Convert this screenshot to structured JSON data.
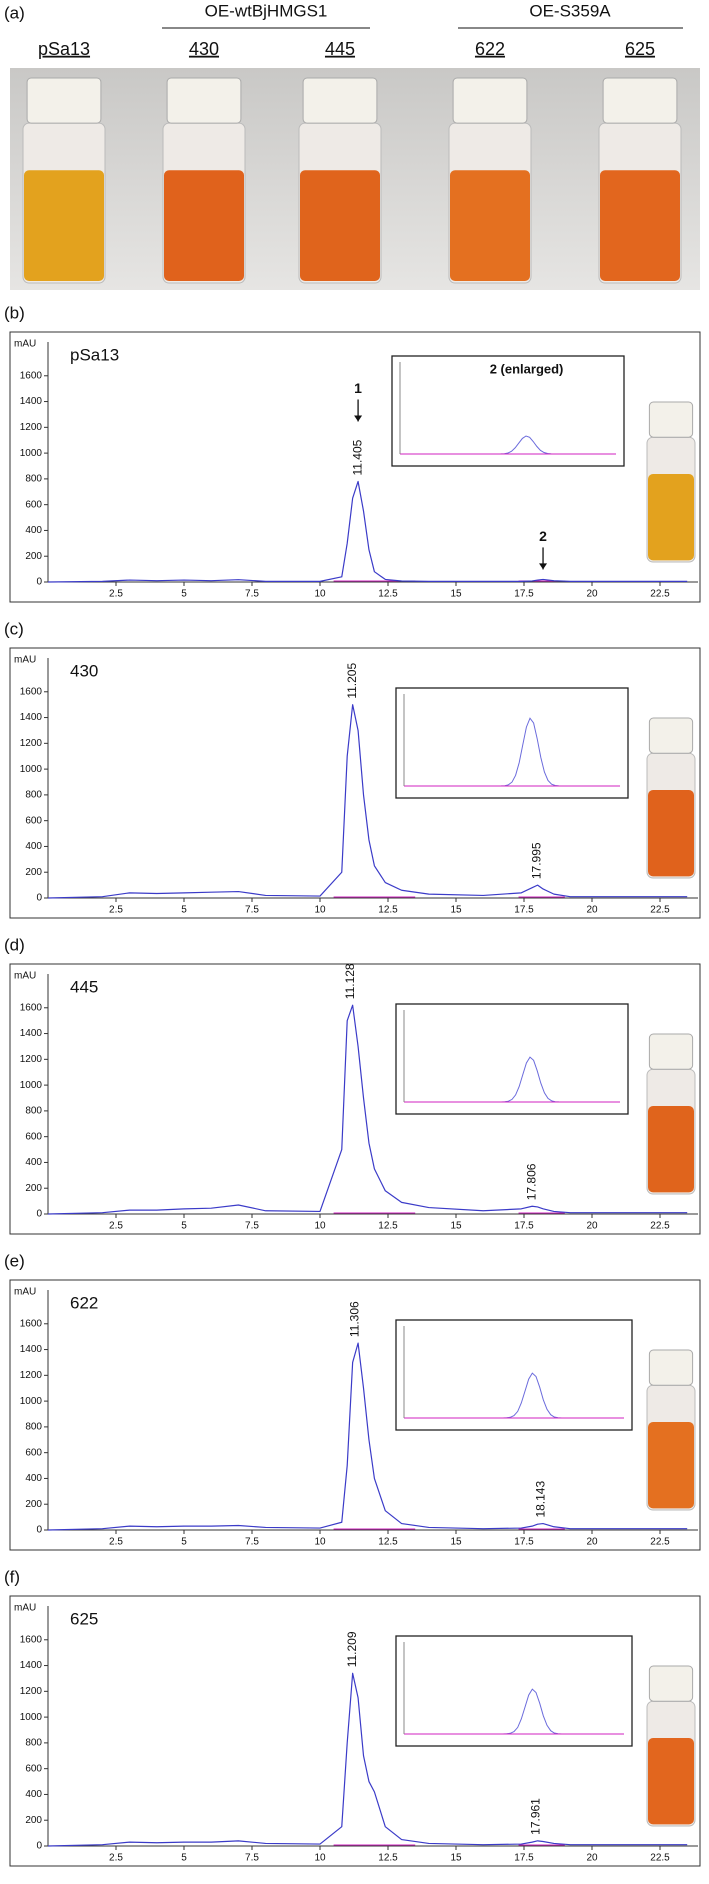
{
  "panel_a": {
    "label": "(a)",
    "groups": [
      "OE-wtBjHMGS1",
      "OE-S359A"
    ],
    "samples": [
      "pSa13",
      "430",
      "445",
      "622",
      "625"
    ]
  },
  "chart_data": [
    {
      "type": "line",
      "panel": "(b)",
      "title": "pSa13",
      "y_label": "mAU",
      "xlim": [
        0,
        23.5
      ],
      "ylim": [
        0,
        1800
      ],
      "xticks": [
        2.5,
        5,
        7.5,
        10,
        12.5,
        15,
        17.5,
        20,
        22.5
      ],
      "yticks": [
        0,
        200,
        400,
        600,
        800,
        1000,
        1200,
        1400,
        1600
      ],
      "x": [
        0,
        2,
        3,
        4,
        5,
        6,
        7,
        8,
        10,
        10.8,
        11.0,
        11.2,
        11.4,
        11.6,
        11.8,
        12.0,
        12.4,
        13,
        14,
        16,
        17.4,
        17.8,
        18.0,
        18.2,
        18.6,
        19.2,
        21,
        23.5
      ],
      "series": [
        {
          "color": "#3b3bc8",
          "values": [
            0,
            5,
            15,
            10,
            15,
            10,
            18,
            5,
            5,
            40,
            300,
            650,
            780,
            550,
            250,
            80,
            20,
            8,
            5,
            5,
            5,
            8,
            15,
            20,
            10,
            5,
            5,
            5
          ]
        }
      ],
      "peak_labels": [
        11.405
      ],
      "annotations": [
        "1",
        "2"
      ],
      "inset_label": "2 (enlarged)",
      "vial_color": "#e3a21e"
    },
    {
      "type": "line",
      "panel": "(c)",
      "title": "430",
      "y_label": "mAU",
      "xlim": [
        0,
        23.5
      ],
      "ylim": [
        0,
        1800
      ],
      "xticks": [
        2.5,
        5,
        7.5,
        10,
        12.5,
        15,
        17.5,
        20,
        22.5
      ],
      "yticks": [
        0,
        200,
        400,
        600,
        800,
        1000,
        1200,
        1400,
        1600
      ],
      "x": [
        0,
        2,
        3,
        4,
        5,
        6,
        7,
        8,
        10,
        10.8,
        11.0,
        11.2,
        11.4,
        11.6,
        11.8,
        12.0,
        12.4,
        13,
        14,
        16,
        17.4,
        17.8,
        18.0,
        18.2,
        18.6,
        19.2,
        21,
        23.5
      ],
      "series": [
        {
          "color": "#3b3bc8",
          "values": [
            0,
            10,
            40,
            35,
            40,
            45,
            50,
            20,
            15,
            200,
            1100,
            1500,
            1300,
            800,
            450,
            250,
            120,
            60,
            30,
            20,
            40,
            80,
            100,
            70,
            30,
            10,
            10,
            10
          ]
        }
      ],
      "peak_labels": [
        11.205,
        17.995
      ],
      "vial_color": "#e0621c"
    },
    {
      "type": "line",
      "panel": "(d)",
      "title": "445",
      "y_label": "mAU",
      "xlim": [
        0,
        23.5
      ],
      "ylim": [
        0,
        1800
      ],
      "xticks": [
        2.5,
        5,
        7.5,
        10,
        12.5,
        15,
        17.5,
        20,
        22.5
      ],
      "yticks": [
        0,
        200,
        400,
        600,
        800,
        1000,
        1200,
        1400,
        1600
      ],
      "x": [
        0,
        2,
        3,
        4,
        5,
        6,
        7,
        8,
        10,
        10.8,
        11.0,
        11.2,
        11.4,
        11.6,
        11.8,
        12.0,
        12.4,
        13,
        14,
        16,
        17.4,
        17.8,
        18.0,
        18.2,
        18.6,
        19.2,
        21,
        23.5
      ],
      "series": [
        {
          "color": "#3b3bc8",
          "values": [
            0,
            10,
            30,
            30,
            40,
            45,
            70,
            25,
            20,
            500,
            1500,
            1620,
            1300,
            900,
            550,
            350,
            180,
            90,
            50,
            25,
            40,
            60,
            55,
            40,
            20,
            10,
            10,
            10
          ]
        }
      ],
      "peak_labels": [
        11.128,
        17.806
      ],
      "vial_color": "#e0641c"
    },
    {
      "type": "line",
      "panel": "(e)",
      "title": "622",
      "y_label": "mAU",
      "xlim": [
        0,
        23.5
      ],
      "ylim": [
        0,
        1800
      ],
      "xticks": [
        2.5,
        5,
        7.5,
        10,
        12.5,
        15,
        17.5,
        20,
        22.5
      ],
      "yticks": [
        0,
        200,
        400,
        600,
        800,
        1000,
        1200,
        1400,
        1600
      ],
      "x": [
        0,
        2,
        3,
        4,
        5,
        6,
        7,
        8,
        10,
        10.8,
        11.0,
        11.2,
        11.4,
        11.6,
        11.8,
        12.0,
        12.4,
        13,
        14,
        16,
        17.4,
        17.8,
        18.0,
        18.2,
        18.6,
        19.2,
        21,
        23.5
      ],
      "series": [
        {
          "color": "#3b3bc8",
          "values": [
            0,
            10,
            30,
            25,
            30,
            30,
            35,
            20,
            15,
            60,
            500,
            1300,
            1450,
            1100,
            700,
            400,
            150,
            50,
            20,
            10,
            15,
            30,
            45,
            50,
            25,
            10,
            10,
            10
          ]
        }
      ],
      "peak_labels": [
        11.306,
        18.143
      ],
      "vial_color": "#e47020"
    },
    {
      "type": "line",
      "panel": "(f)",
      "title": "625",
      "y_label": "mAU",
      "xlim": [
        0,
        23.5
      ],
      "ylim": [
        0,
        1800
      ],
      "xticks": [
        2.5,
        5,
        7.5,
        10,
        12.5,
        15,
        17.5,
        20,
        22.5
      ],
      "yticks": [
        0,
        200,
        400,
        600,
        800,
        1000,
        1200,
        1400,
        1600
      ],
      "x": [
        0,
        2,
        3,
        4,
        5,
        6,
        7,
        8,
        10,
        10.8,
        11.0,
        11.2,
        11.4,
        11.6,
        11.8,
        12.0,
        12.4,
        13,
        14,
        16,
        17.4,
        17.8,
        18.0,
        18.2,
        18.6,
        19.2,
        21,
        23.5
      ],
      "series": [
        {
          "color": "#3b3bc8",
          "values": [
            0,
            10,
            30,
            25,
            30,
            30,
            40,
            20,
            15,
            150,
            800,
            1340,
            1150,
            700,
            500,
            420,
            150,
            50,
            20,
            10,
            15,
            30,
            40,
            35,
            20,
            10,
            10,
            10
          ]
        }
      ],
      "peak_labels": [
        11.209,
        17.961
      ],
      "vial_color": "#e2661e"
    }
  ]
}
